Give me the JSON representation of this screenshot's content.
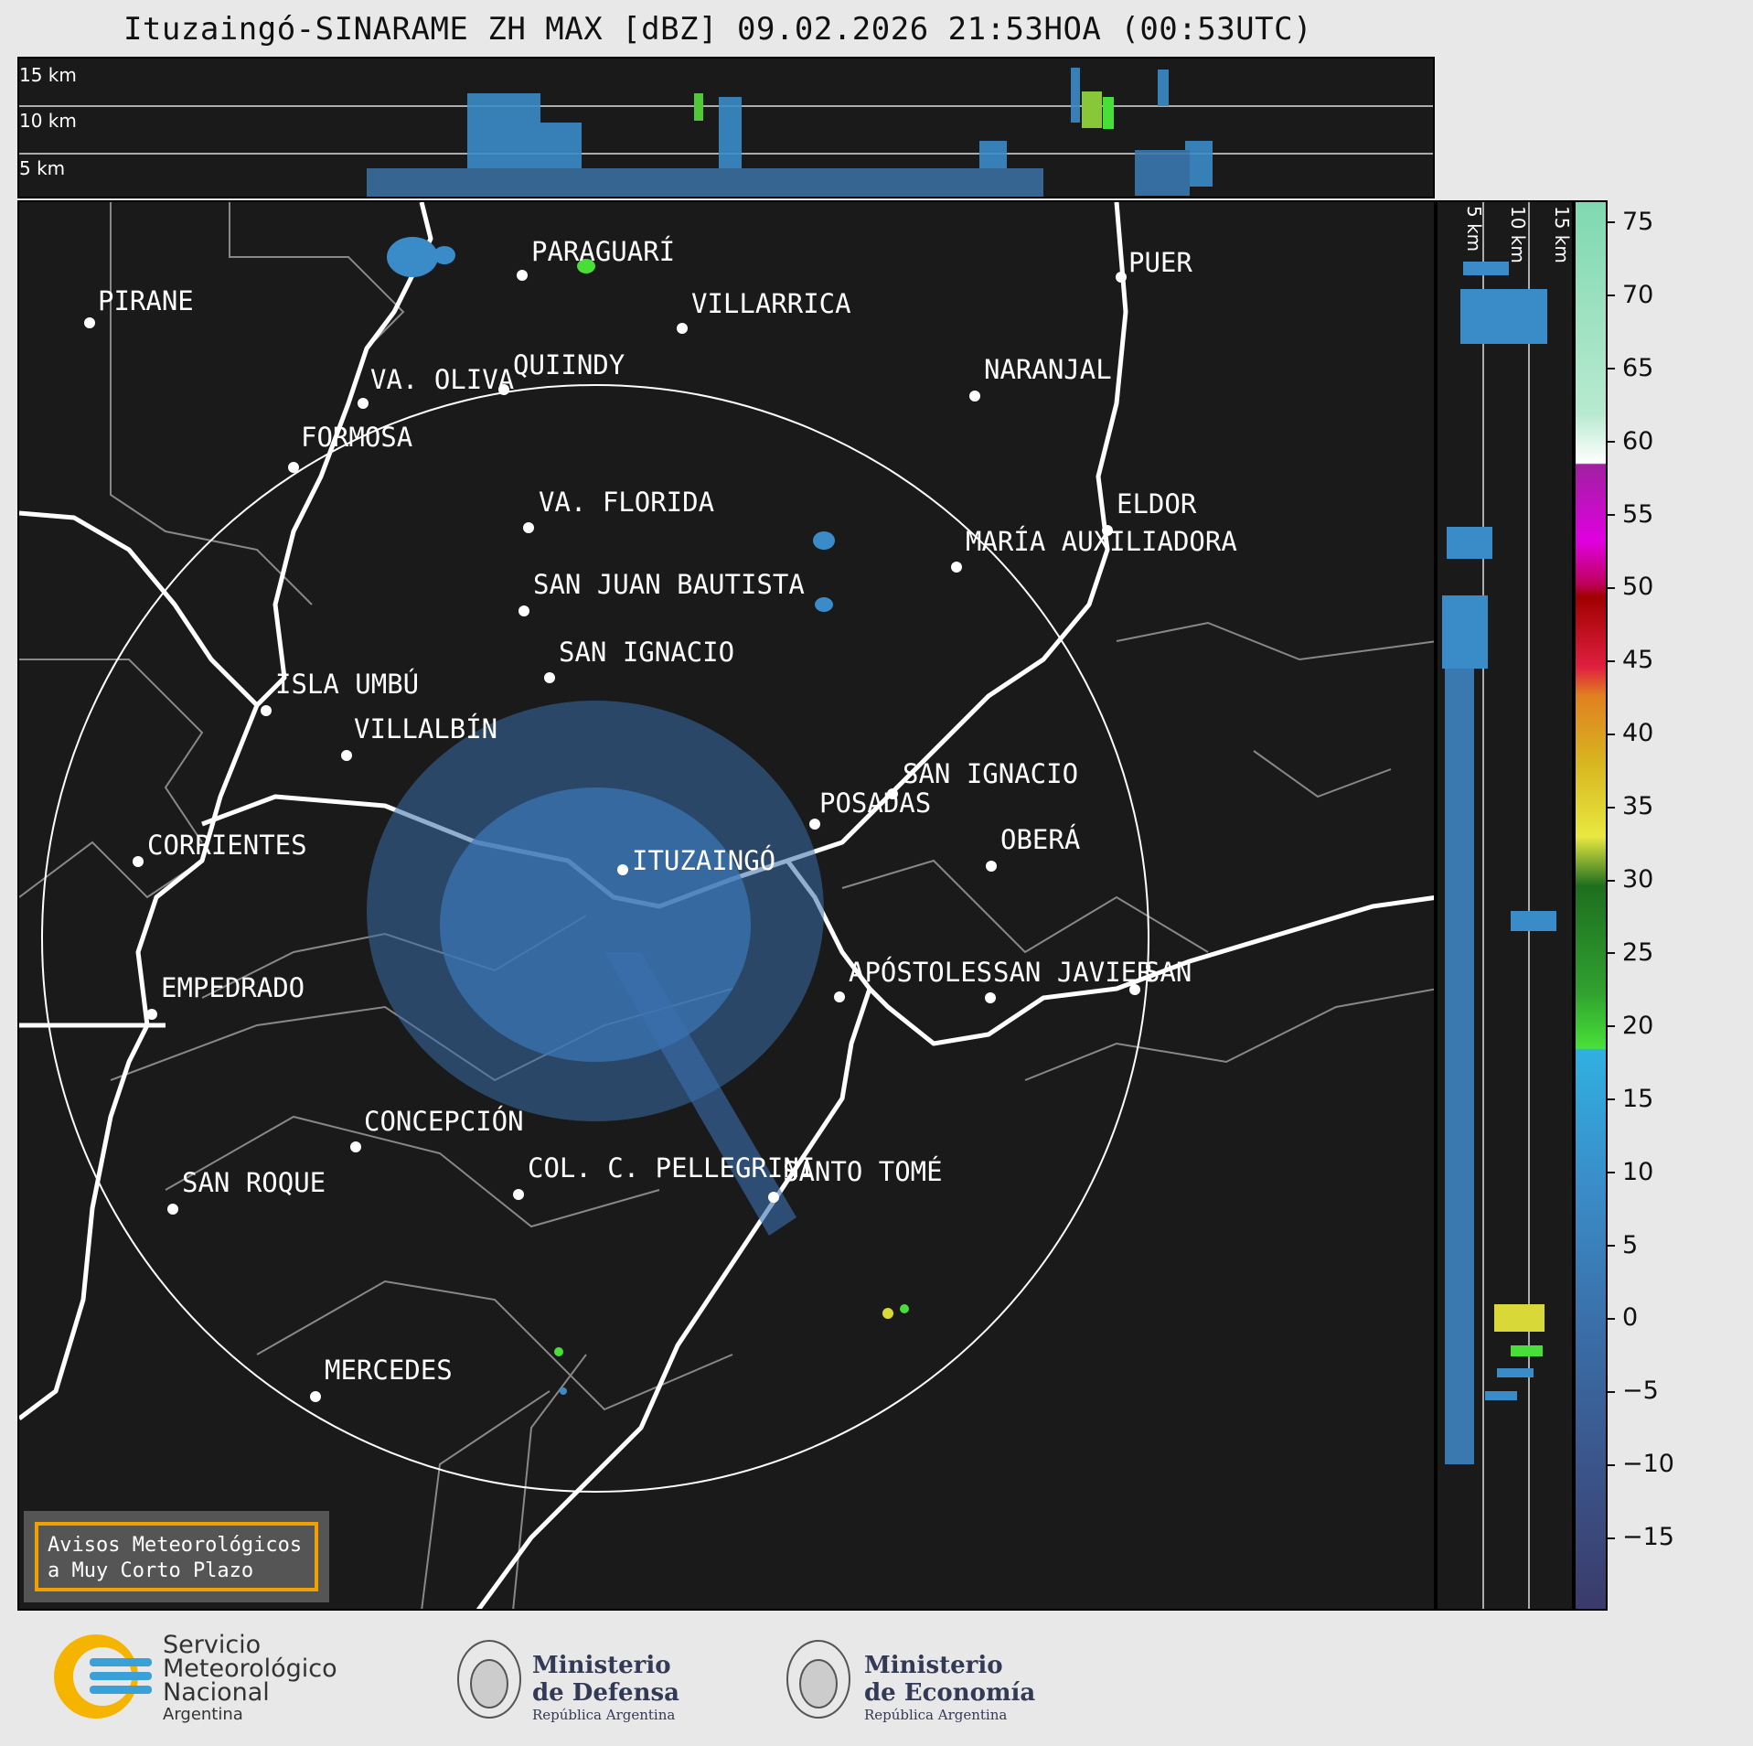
{
  "title": "Ituzaingó-SINARAME ZH MAX [dBZ] 09.02.2026 21:53HOA (00:53UTC)",
  "top_panel": {
    "altitudes": [
      "15 km",
      "10 km",
      "5 km"
    ]
  },
  "side_panel": {
    "altitudes": [
      "5 km",
      "10 km",
      "15 km"
    ]
  },
  "cities": [
    {
      "name": "PIRANE"
    },
    {
      "name": "PARAGUARÍ"
    },
    {
      "name": "VILLARRICA"
    },
    {
      "name": "QUIINDY"
    },
    {
      "name": "VA. OLIVA"
    },
    {
      "name": "FORMOSA"
    },
    {
      "name": "NARANJAL"
    },
    {
      "name": "VA. FLORIDA"
    },
    {
      "name": "ELDOR"
    },
    {
      "name": "MARÍA AUXILIADORA"
    },
    {
      "name": "SAN JUAN BAUTISTA"
    },
    {
      "name": "SAN IGNACIO"
    },
    {
      "name": "ISLA UMBÚ"
    },
    {
      "name": "VILLALBÍN"
    },
    {
      "name": "SAN IGNACIO"
    },
    {
      "name": "POSADAS"
    },
    {
      "name": "CORRIENTES"
    },
    {
      "name": "ITUZAINGÓ"
    },
    {
      "name": "OBERÁ"
    },
    {
      "name": "EMPEDRADO"
    },
    {
      "name": "APÓSTOLES"
    },
    {
      "name": "SAN JAVIER"
    },
    {
      "name": "SAN"
    },
    {
      "name": "CONCEPCIÓN"
    },
    {
      "name": "COL. C. PELLEGRINI"
    },
    {
      "name": "SANTO TOMÉ"
    },
    {
      "name": "SAN ROQUE"
    },
    {
      "name": "MERCEDES"
    },
    {
      "name": "PUER"
    }
  ],
  "colorbar": {
    "ticks": [
      "75",
      "70",
      "65",
      "60",
      "55",
      "50",
      "45",
      "40",
      "35",
      "30",
      "25",
      "20",
      "15",
      "10",
      "5",
      "0",
      "−5",
      "−10",
      "−15"
    ],
    "range": [
      -20,
      76.5
    ]
  },
  "aviso": {
    "line1": "Avisos Meteorológicos",
    "line2": "a Muy Corto Plazo"
  },
  "footer": {
    "smn": {
      "line1": "Servicio",
      "line2": "Meteorológico",
      "line3": "Nacional",
      "line4": "Argentina"
    },
    "defensa": {
      "line1": "Ministerio",
      "line2": "de Defensa",
      "line3": "República Argentina"
    },
    "economia": {
      "line1": "Ministerio",
      "line2": "de Economía",
      "line3": "República Argentina"
    }
  }
}
